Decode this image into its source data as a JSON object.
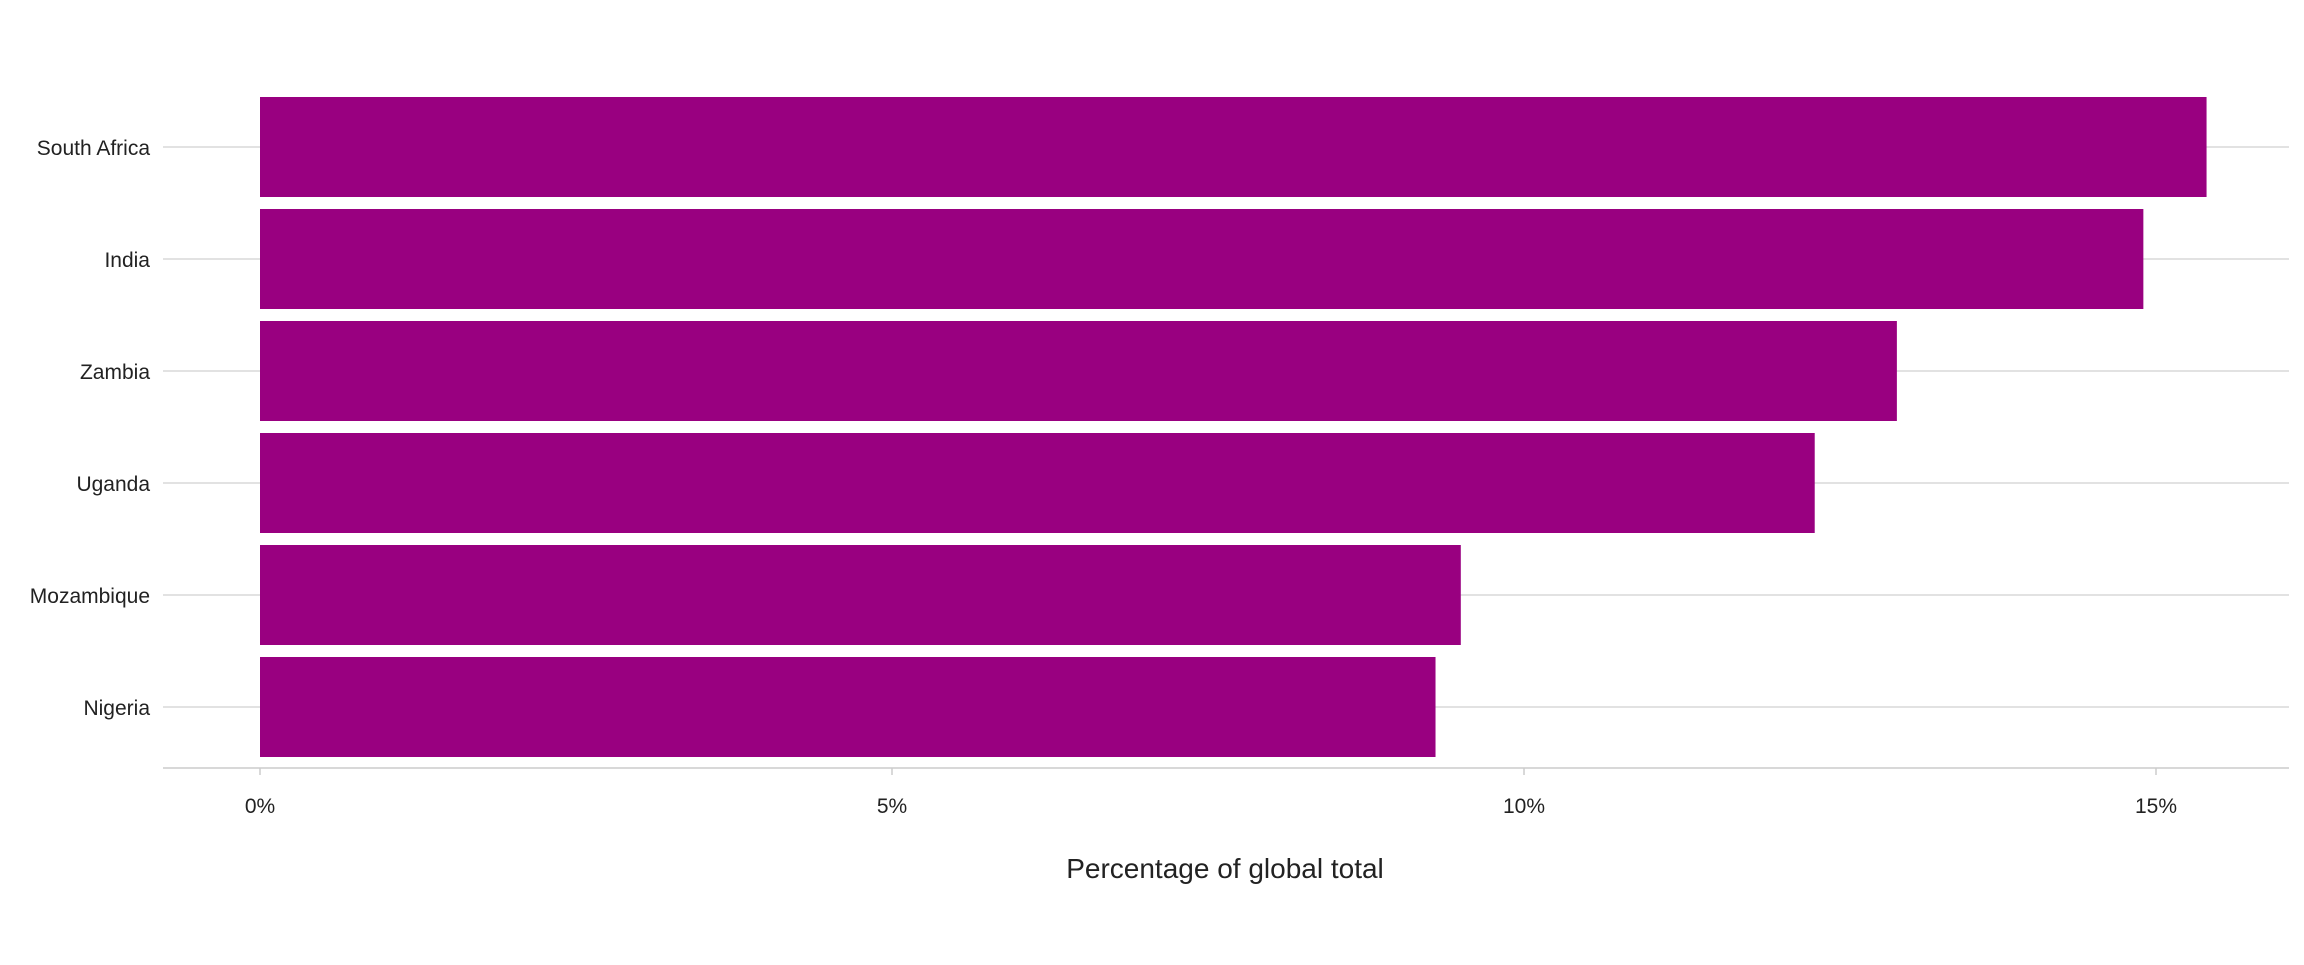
{
  "chart_data": {
    "type": "bar",
    "orientation": "horizontal",
    "categories": [
      "South Africa",
      "India",
      "Zambia",
      "Uganda",
      "Mozambique",
      "Nigeria"
    ],
    "values": [
      15.4,
      14.9,
      12.95,
      12.3,
      9.5,
      9.3
    ],
    "unit": "%",
    "title": "",
    "xlabel": "Percentage of global total",
    "ylabel": "",
    "xlim": [
      -0.75,
      16.2
    ],
    "xticks": [
      0,
      5,
      10,
      15
    ],
    "xtick_labels": [
      "0%",
      "5%",
      "10%",
      "15%"
    ],
    "grid": "horizontal major lines only",
    "legend": "none",
    "bar_color": "#990080",
    "grid_color": "#d9d9d9"
  }
}
